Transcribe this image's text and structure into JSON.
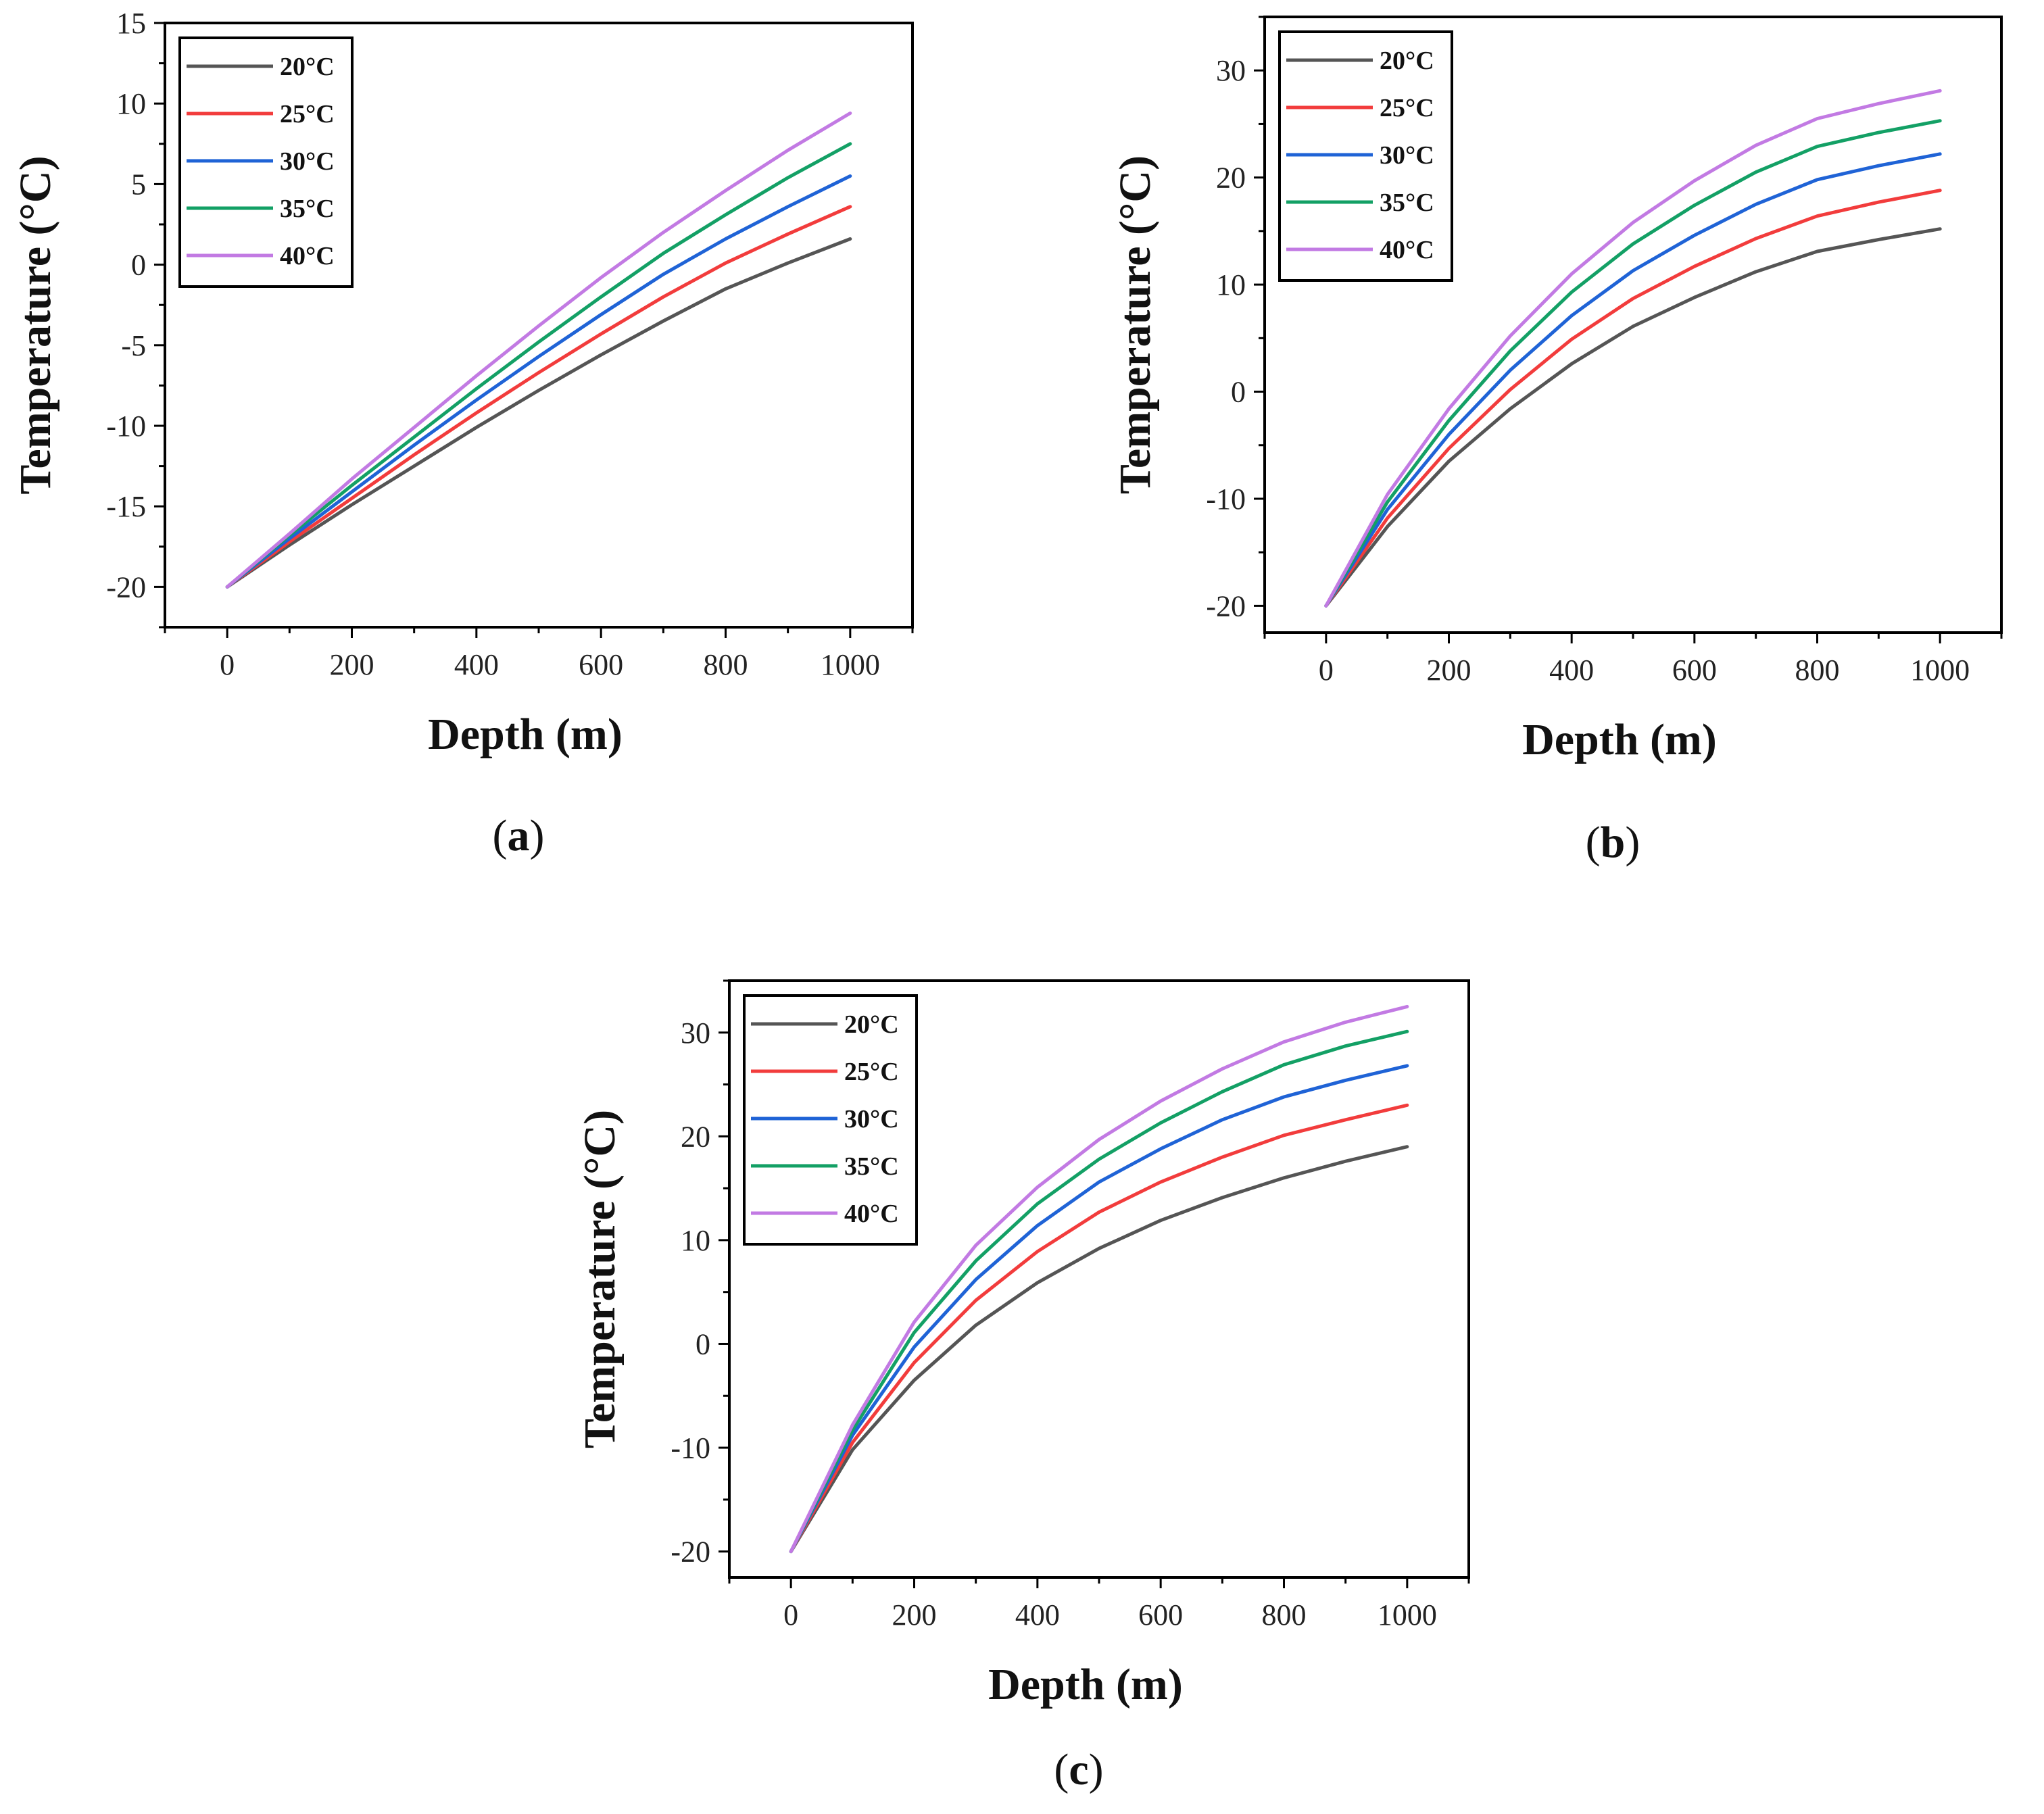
{
  "legend_title_unit": "°C",
  "colors": {
    "20°C": "#555555",
    "25°C": "#f23c3c",
    "30°C": "#1f63d6",
    "35°C": "#13a065",
    "40°C": "#c27ae3"
  },
  "chart_data": [
    {
      "id": "a",
      "type": "line",
      "caption": {
        "open": "(",
        "letter": "a",
        "close": ")"
      },
      "xlabel": "Depth (m)",
      "ylabel": "Temperature (°C)",
      "xlim": [
        -100,
        1100
      ],
      "ylim": [
        -22.5,
        15
      ],
      "xticks": [
        0,
        200,
        400,
        600,
        800,
        1000
      ],
      "yticks": [
        -20,
        -15,
        -10,
        -5,
        0,
        5,
        10,
        15
      ],
      "legend_position": "top-left",
      "x": [
        0,
        100,
        200,
        300,
        400,
        500,
        600,
        700,
        800,
        900,
        1000
      ],
      "series": [
        {
          "name": "20°C",
          "values": [
            -20,
            -17.4,
            -14.9,
            -12.5,
            -10.1,
            -7.8,
            -5.6,
            -3.5,
            -1.5,
            0.1,
            1.6
          ]
        },
        {
          "name": "25°C",
          "values": [
            -20,
            -17.2,
            -14.5,
            -11.8,
            -9.2,
            -6.7,
            -4.3,
            -2.0,
            0.1,
            1.9,
            3.6
          ]
        },
        {
          "name": "30°C",
          "values": [
            -20,
            -17.0,
            -14.1,
            -11.2,
            -8.4,
            -5.7,
            -3.1,
            -0.6,
            1.6,
            3.6,
            5.5
          ]
        },
        {
          "name": "35°C",
          "values": [
            -20,
            -16.8,
            -13.7,
            -10.7,
            -7.7,
            -4.8,
            -2.0,
            0.7,
            3.1,
            5.4,
            7.5
          ]
        },
        {
          "name": "40°C",
          "values": [
            -20,
            -16.7,
            -13.3,
            -10.1,
            -6.9,
            -3.8,
            -0.8,
            2.0,
            4.6,
            7.1,
            9.4
          ]
        }
      ]
    },
    {
      "id": "b",
      "type": "line",
      "caption": {
        "open": "(",
        "letter": "b",
        "close": ")"
      },
      "xlabel": "Depth (m)",
      "ylabel": "Temperature (°C)",
      "xlim": [
        -100,
        1100
      ],
      "ylim": [
        -22.5,
        35
      ],
      "xticks": [
        0,
        200,
        400,
        600,
        800,
        1000
      ],
      "yticks": [
        -20,
        -10,
        0,
        10,
        20,
        30
      ],
      "legend_position": "top-left",
      "x": [
        0,
        100,
        200,
        300,
        400,
        500,
        600,
        700,
        800,
        900,
        1000
      ],
      "series": [
        {
          "name": "20°C",
          "values": [
            -20,
            -12.6,
            -6.5,
            -1.6,
            2.6,
            6.1,
            8.8,
            11.2,
            13.1,
            14.2,
            15.2
          ]
        },
        {
          "name": "25°C",
          "values": [
            -20,
            -11.8,
            -5.3,
            0.2,
            4.9,
            8.7,
            11.7,
            14.3,
            16.4,
            17.7,
            18.8
          ]
        },
        {
          "name": "30°C",
          "values": [
            -20,
            -11.0,
            -4.0,
            2.0,
            7.1,
            11.3,
            14.6,
            17.5,
            19.8,
            21.1,
            22.2
          ]
        },
        {
          "name": "35°C",
          "values": [
            -20,
            -10.3,
            -2.7,
            3.8,
            9.3,
            13.8,
            17.4,
            20.5,
            22.9,
            24.2,
            25.3
          ]
        },
        {
          "name": "40°C",
          "values": [
            -20,
            -9.6,
            -1.6,
            5.2,
            11.0,
            15.8,
            19.7,
            23.0,
            25.5,
            26.9,
            28.1
          ]
        }
      ]
    },
    {
      "id": "c",
      "type": "line",
      "caption": {
        "open": "(",
        "letter": "c",
        "close": ")"
      },
      "xlabel": "Depth (m)",
      "ylabel": "Temperature (°C)",
      "xlim": [
        -100,
        1100
      ],
      "ylim": [
        -22.5,
        35
      ],
      "xticks": [
        0,
        200,
        400,
        600,
        800,
        1000
      ],
      "yticks": [
        -20,
        -10,
        0,
        10,
        20,
        30
      ],
      "legend_position": "top-left",
      "x": [
        0,
        100,
        200,
        300,
        400,
        500,
        600,
        700,
        800,
        900,
        1000
      ],
      "series": [
        {
          "name": "20°C",
          "values": [
            -20,
            -10.2,
            -3.5,
            1.8,
            5.9,
            9.2,
            11.9,
            14.1,
            16.0,
            17.6,
            19.0
          ]
        },
        {
          "name": "25°C",
          "values": [
            -20,
            -9.5,
            -1.8,
            4.2,
            8.9,
            12.7,
            15.6,
            18.0,
            20.1,
            21.6,
            23.0
          ]
        },
        {
          "name": "30°C",
          "values": [
            -20,
            -8.8,
            -0.3,
            6.2,
            11.4,
            15.6,
            18.8,
            21.6,
            23.8,
            25.4,
            26.8
          ]
        },
        {
          "name": "35°C",
          "values": [
            -20,
            -8.3,
            1.1,
            8.0,
            13.5,
            17.8,
            21.3,
            24.3,
            26.9,
            28.7,
            30.1
          ]
        },
        {
          "name": "40°C",
          "values": [
            -20,
            -7.8,
            2.1,
            9.5,
            15.1,
            19.7,
            23.4,
            26.5,
            29.1,
            31.0,
            32.5
          ]
        }
      ]
    }
  ]
}
